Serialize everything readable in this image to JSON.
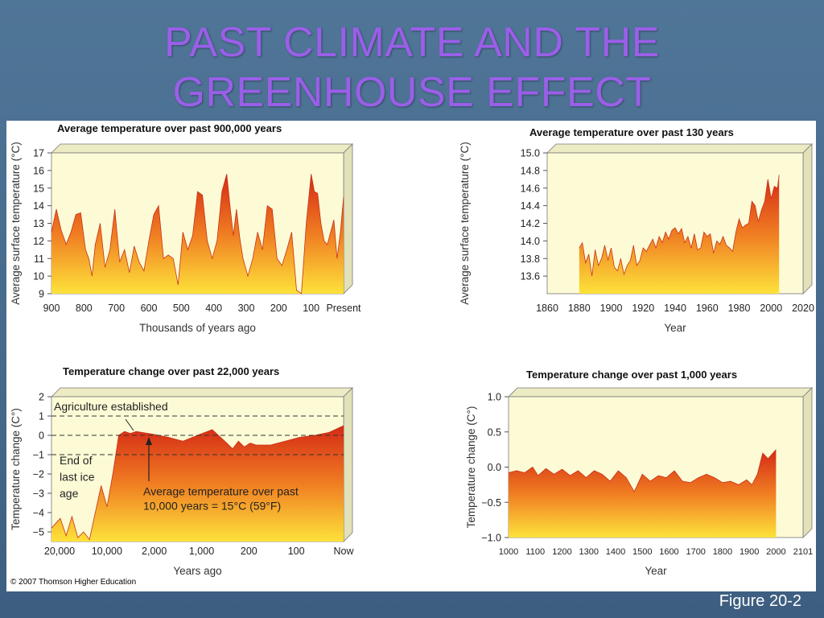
{
  "slide": {
    "title_line1": "PAST CLIMATE AND THE",
    "title_line2": "GREENHOUSE EFFECT",
    "figure_label": "Figure 20-2",
    "copyright": "© 2007 Thomson Higher Education"
  },
  "colors": {
    "background": "#46698c",
    "title": "#9a5fe8",
    "fill_top": "#d42a16",
    "fill_mid": "#f07d22",
    "fill_bottom": "#fde23a",
    "plot_bg": "#fdfbd6"
  },
  "chart_data": [
    {
      "type": "area",
      "title": "Average temperature over past 900,000 years",
      "xlabel": "Thousands of years ago",
      "ylabel": "Average surface temperature (°C)",
      "xlim": [
        900,
        0
      ],
      "ylim": [
        9,
        17
      ],
      "x_ticks": [
        "900",
        "800",
        "700",
        "600",
        "500",
        "400",
        "300",
        "200",
        "100",
        "Present"
      ],
      "x_tick_values": [
        900,
        800,
        700,
        600,
        500,
        400,
        300,
        200,
        100,
        0
      ],
      "y_ticks": [
        "9",
        "10",
        "11",
        "12",
        "13",
        "14",
        "15",
        "16",
        "17"
      ],
      "y_tick_values": [
        9,
        10,
        11,
        12,
        13,
        14,
        15,
        16,
        17
      ],
      "x": [
        900,
        885,
        870,
        855,
        840,
        825,
        810,
        795,
        785,
        775,
        765,
        750,
        735,
        720,
        705,
        690,
        675,
        660,
        645,
        630,
        615,
        600,
        585,
        570,
        555,
        540,
        525,
        510,
        495,
        480,
        465,
        450,
        435,
        420,
        405,
        390,
        375,
        360,
        350,
        340,
        330,
        320,
        310,
        295,
        280,
        265,
        250,
        235,
        220,
        205,
        190,
        175,
        160,
        145,
        130,
        115,
        100,
        90,
        80,
        70,
        60,
        50,
        40,
        30,
        20,
        10,
        0
      ],
      "y": [
        12.5,
        13.8,
        12.6,
        11.8,
        12.5,
        13.5,
        13.6,
        11.5,
        11.0,
        10.0,
        11.8,
        13.0,
        10.5,
        11.5,
        13.8,
        10.8,
        11.5,
        10.2,
        11.7,
        10.8,
        10.3,
        12.0,
        13.5,
        14.0,
        11.0,
        11.2,
        11.0,
        9.5,
        12.5,
        11.5,
        12.3,
        14.8,
        14.6,
        12.0,
        11.0,
        12.0,
        14.8,
        15.8,
        14.0,
        12.3,
        13.8,
        12.2,
        11.0,
        10.0,
        11.0,
        12.5,
        11.5,
        14.0,
        13.8,
        11.0,
        10.6,
        11.5,
        12.5,
        9.2,
        9.0,
        13.0,
        15.8,
        14.8,
        14.7,
        13.0,
        12.0,
        11.8,
        12.5,
        13.2,
        11.0,
        12.5,
        14.5
      ]
    },
    {
      "type": "area",
      "title": "Average temperature over past 130 years",
      "xlabel": "Year",
      "ylabel": "Average surface temperature (°C)",
      "xlim": [
        1860,
        2020
      ],
      "ylim": [
        13.4,
        15.0
      ],
      "x_ticks": [
        "1860",
        "1880",
        "1900",
        "1920",
        "1940",
        "1960",
        "1980",
        "2000",
        "2020"
      ],
      "x_tick_values": [
        1860,
        1880,
        1900,
        1920,
        1940,
        1960,
        1980,
        2000,
        2020
      ],
      "y_ticks": [
        "13.6",
        "13.8",
        "14.0",
        "14.2",
        "14.4",
        "14.6",
        "14.8",
        "15.0"
      ],
      "y_tick_values": [
        13.6,
        13.8,
        14.0,
        14.2,
        14.4,
        14.6,
        14.8,
        15.0
      ],
      "x": [
        1880,
        1882,
        1884,
        1886,
        1888,
        1890,
        1892,
        1894,
        1896,
        1898,
        1900,
        1902,
        1904,
        1906,
        1908,
        1910,
        1912,
        1914,
        1916,
        1918,
        1920,
        1922,
        1924,
        1926,
        1928,
        1930,
        1932,
        1934,
        1936,
        1938,
        1940,
        1942,
        1944,
        1946,
        1948,
        1950,
        1952,
        1954,
        1956,
        1958,
        1960,
        1962,
        1964,
        1966,
        1968,
        1970,
        1972,
        1974,
        1976,
        1978,
        1980,
        1982,
        1984,
        1986,
        1988,
        1990,
        1992,
        1994,
        1996,
        1998,
        2000,
        2002,
        2004,
        2005
      ],
      "y": [
        13.92,
        13.98,
        13.75,
        13.85,
        13.6,
        13.9,
        13.72,
        13.8,
        13.95,
        13.78,
        13.92,
        13.7,
        13.66,
        13.8,
        13.62,
        13.72,
        13.78,
        13.95,
        13.72,
        13.78,
        13.92,
        13.88,
        13.95,
        14.02,
        13.92,
        14.05,
        13.98,
        14.1,
        14.02,
        14.12,
        14.15,
        14.08,
        14.14,
        13.98,
        14.05,
        13.92,
        14.08,
        13.9,
        13.92,
        14.1,
        14.05,
        14.08,
        13.86,
        14.0,
        13.96,
        14.05,
        13.95,
        13.92,
        13.88,
        14.1,
        14.25,
        14.15,
        14.18,
        14.2,
        14.45,
        14.4,
        14.22,
        14.35,
        14.45,
        14.7,
        14.48,
        14.62,
        14.6,
        14.75
      ]
    },
    {
      "type": "area",
      "title": "Temperature change over past 22,000 years",
      "xlabel": "Years ago",
      "ylabel": "Temperature change (C°)",
      "ylim": [
        -5.5,
        2
      ],
      "x_ticks": [
        "20,000",
        "10,000",
        "2,000",
        "1,000",
        "200",
        "100",
        "Now"
      ],
      "y_ticks": [
        "−5",
        "−4",
        "−3",
        "−2",
        "−1",
        "0",
        "1",
        "2"
      ],
      "y_tick_values": [
        -5,
        -4,
        -3,
        -2,
        -1,
        0,
        1,
        2
      ],
      "annotations": {
        "agriculture": "Agriculture established",
        "ice_age_line1": "End of",
        "ice_age_line2": "last ice",
        "ice_age_line3": "age",
        "average_line1": "Average temperature over past",
        "average_line2": "10,000 years = 15°C (59°F)"
      },
      "x": [
        0,
        0.03,
        0.05,
        0.07,
        0.09,
        0.11,
        0.13,
        0.15,
        0.17,
        0.19,
        0.21,
        0.23,
        0.25,
        0.27,
        0.29,
        0.31,
        0.35,
        0.4,
        0.45,
        0.5,
        0.55,
        0.6,
        0.62,
        0.64,
        0.66,
        0.68,
        0.7,
        0.75,
        0.8,
        0.85,
        0.9,
        0.95,
        1.0
      ],
      "y": [
        -4.8,
        -4.3,
        -5.2,
        -4.2,
        -5.3,
        -5.0,
        -5.4,
        -4.0,
        -2.6,
        -3.7,
        -2.0,
        0.0,
        0.2,
        0.1,
        0.2,
        0.15,
        0.05,
        -0.1,
        -0.3,
        0.0,
        0.3,
        -0.4,
        -0.7,
        -0.3,
        -0.6,
        -0.4,
        -0.5,
        -0.5,
        -0.3,
        -0.1,
        0.0,
        0.15,
        0.5
      ]
    },
    {
      "type": "area",
      "title": "Temperature change over past 1,000 years",
      "xlabel": "Year",
      "ylabel": "Temperature change (C°)",
      "xlim": [
        1000,
        2101
      ],
      "ylim": [
        -1.0,
        1.0
      ],
      "x_ticks": [
        "1000",
        "1100",
        "1200",
        "1300",
        "1400",
        "1500",
        "1600",
        "1700",
        "1800",
        "1900",
        "2000",
        "2101"
      ],
      "x_tick_values": [
        1000,
        1100,
        1200,
        1300,
        1400,
        1500,
        1600,
        1700,
        1800,
        1900,
        2000,
        2101
      ],
      "y_ticks": [
        "−1.0",
        "−0.5",
        "0.0",
        "0.5",
        "1.0"
      ],
      "y_tick_values": [
        -1.0,
        -0.5,
        0.0,
        0.5,
        1.0
      ],
      "x": [
        1000,
        1030,
        1060,
        1090,
        1110,
        1140,
        1170,
        1200,
        1230,
        1260,
        1290,
        1320,
        1350,
        1380,
        1410,
        1440,
        1470,
        1500,
        1530,
        1560,
        1590,
        1620,
        1650,
        1680,
        1710,
        1740,
        1770,
        1800,
        1830,
        1860,
        1890,
        1910,
        1930,
        1950,
        1970,
        2000
      ],
      "y": [
        -0.08,
        -0.05,
        -0.08,
        0.0,
        -0.12,
        -0.02,
        -0.1,
        -0.03,
        -0.12,
        -0.05,
        -0.15,
        -0.05,
        -0.1,
        -0.2,
        -0.05,
        -0.15,
        -0.35,
        -0.1,
        -0.2,
        -0.12,
        -0.15,
        -0.05,
        -0.2,
        -0.22,
        -0.15,
        -0.1,
        -0.15,
        -0.22,
        -0.2,
        -0.25,
        -0.18,
        -0.25,
        -0.1,
        0.2,
        0.12,
        0.25
      ]
    }
  ]
}
